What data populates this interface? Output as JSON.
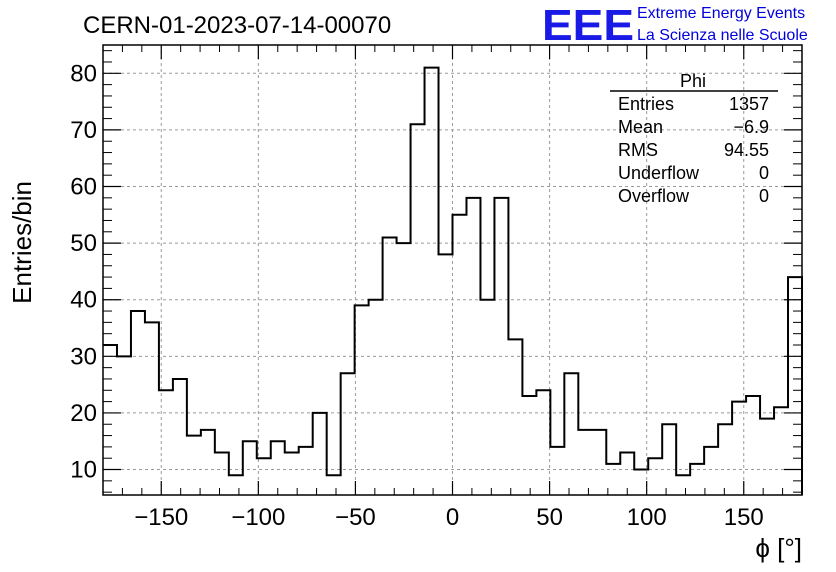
{
  "run_title": "CERN-01-2023-07-14-00070",
  "logo": {
    "text": "EEE",
    "line1": "Extreme Energy Events",
    "line2": "La Scienza nelle Scuole",
    "color": "#1a1ae6"
  },
  "stats_box": {
    "name": "Phi",
    "rows": [
      {
        "label": "Entries",
        "value": "1357"
      },
      {
        "label": "Mean",
        "value": "−6.9"
      },
      {
        "label": "RMS",
        "value": "94.55"
      },
      {
        "label": "Underflow",
        "value": "0"
      },
      {
        "label": "Overflow",
        "value": "0"
      }
    ]
  },
  "chart_data": {
    "type": "bar",
    "style": "step-histogram",
    "title": "CERN-01-2023-07-14-00070",
    "xlabel": "ϕ [°]",
    "ylabel": "Entries/bin",
    "xlim": [
      -180,
      180
    ],
    "ylim": [
      5.5,
      85
    ],
    "bin_width": 7.2,
    "xticks": [
      -150,
      -100,
      -50,
      0,
      50,
      100,
      150
    ],
    "xtick_labels": [
      "−150",
      "−100",
      "−50",
      "0",
      "50",
      "100",
      "150"
    ],
    "yticks": [
      10,
      20,
      30,
      40,
      50,
      60,
      70,
      80
    ],
    "grid": true,
    "values": [
      32,
      30,
      38,
      36,
      24,
      26,
      16,
      17,
      13,
      9,
      15,
      12,
      15,
      13,
      14,
      20,
      9,
      27,
      39,
      40,
      51,
      50,
      71,
      81,
      48,
      55,
      58,
      40,
      58,
      33,
      23,
      24,
      14,
      27,
      17,
      17,
      11,
      13,
      10,
      12,
      18,
      9,
      11,
      14,
      18,
      22,
      23,
      19,
      21,
      44
    ]
  }
}
